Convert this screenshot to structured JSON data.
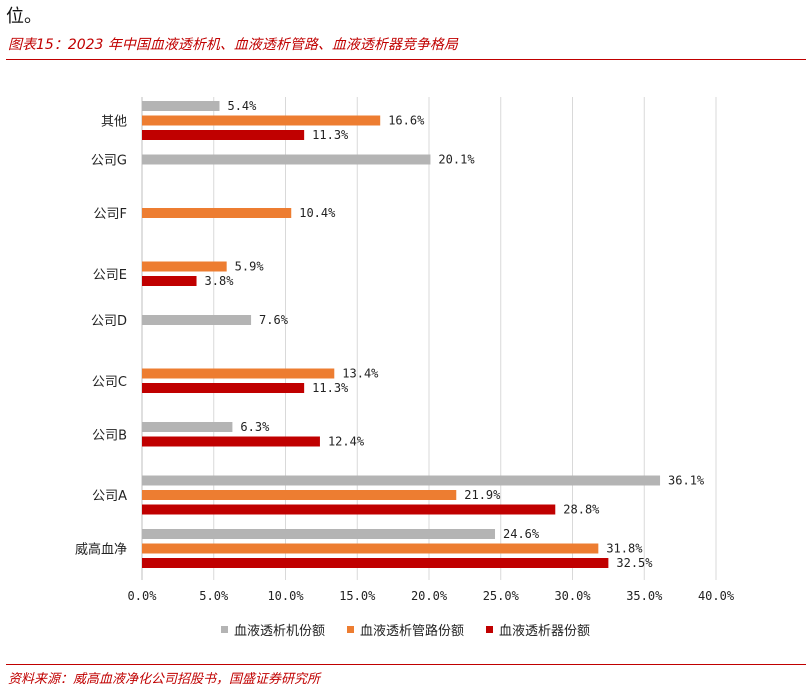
{
  "header": {
    "top_text": "位。",
    "figure_title": "图表15：2023 年中国血液透析机、血液透析管路、血液透析器竞争格局"
  },
  "footer": {
    "source": "资料来源：威高血液净化公司招股书，国盛证券研究所"
  },
  "colors": {
    "machine": "#b4b4b4",
    "tubing": "#ed7d31",
    "dialyzer": "#c00000",
    "accent": "#c00000"
  },
  "chart_data": {
    "type": "bar",
    "orientation": "horizontal",
    "categories": [
      "其他",
      "公司G",
      "公司F",
      "公司E",
      "公司D",
      "公司C",
      "公司B",
      "公司A",
      "威高血净"
    ],
    "series": [
      {
        "name": "血液透析机份额",
        "values": [
          5.4,
          20.1,
          null,
          null,
          7.6,
          null,
          6.3,
          36.1,
          24.6
        ]
      },
      {
        "name": "血液透析管路份额",
        "values": [
          16.6,
          null,
          10.4,
          5.9,
          null,
          13.4,
          null,
          21.9,
          31.8
        ]
      },
      {
        "name": "血液透析器份额",
        "values": [
          11.3,
          null,
          null,
          3.8,
          null,
          11.3,
          12.4,
          28.8,
          32.5
        ]
      }
    ],
    "x_ticks": [
      "0.0%",
      "5.0%",
      "10.0%",
      "15.0%",
      "20.0%",
      "25.0%",
      "30.0%",
      "35.0%",
      "40.0%"
    ],
    "xlim": [
      0,
      40
    ],
    "unit": "%",
    "grid": true,
    "legend_position": "bottom"
  }
}
